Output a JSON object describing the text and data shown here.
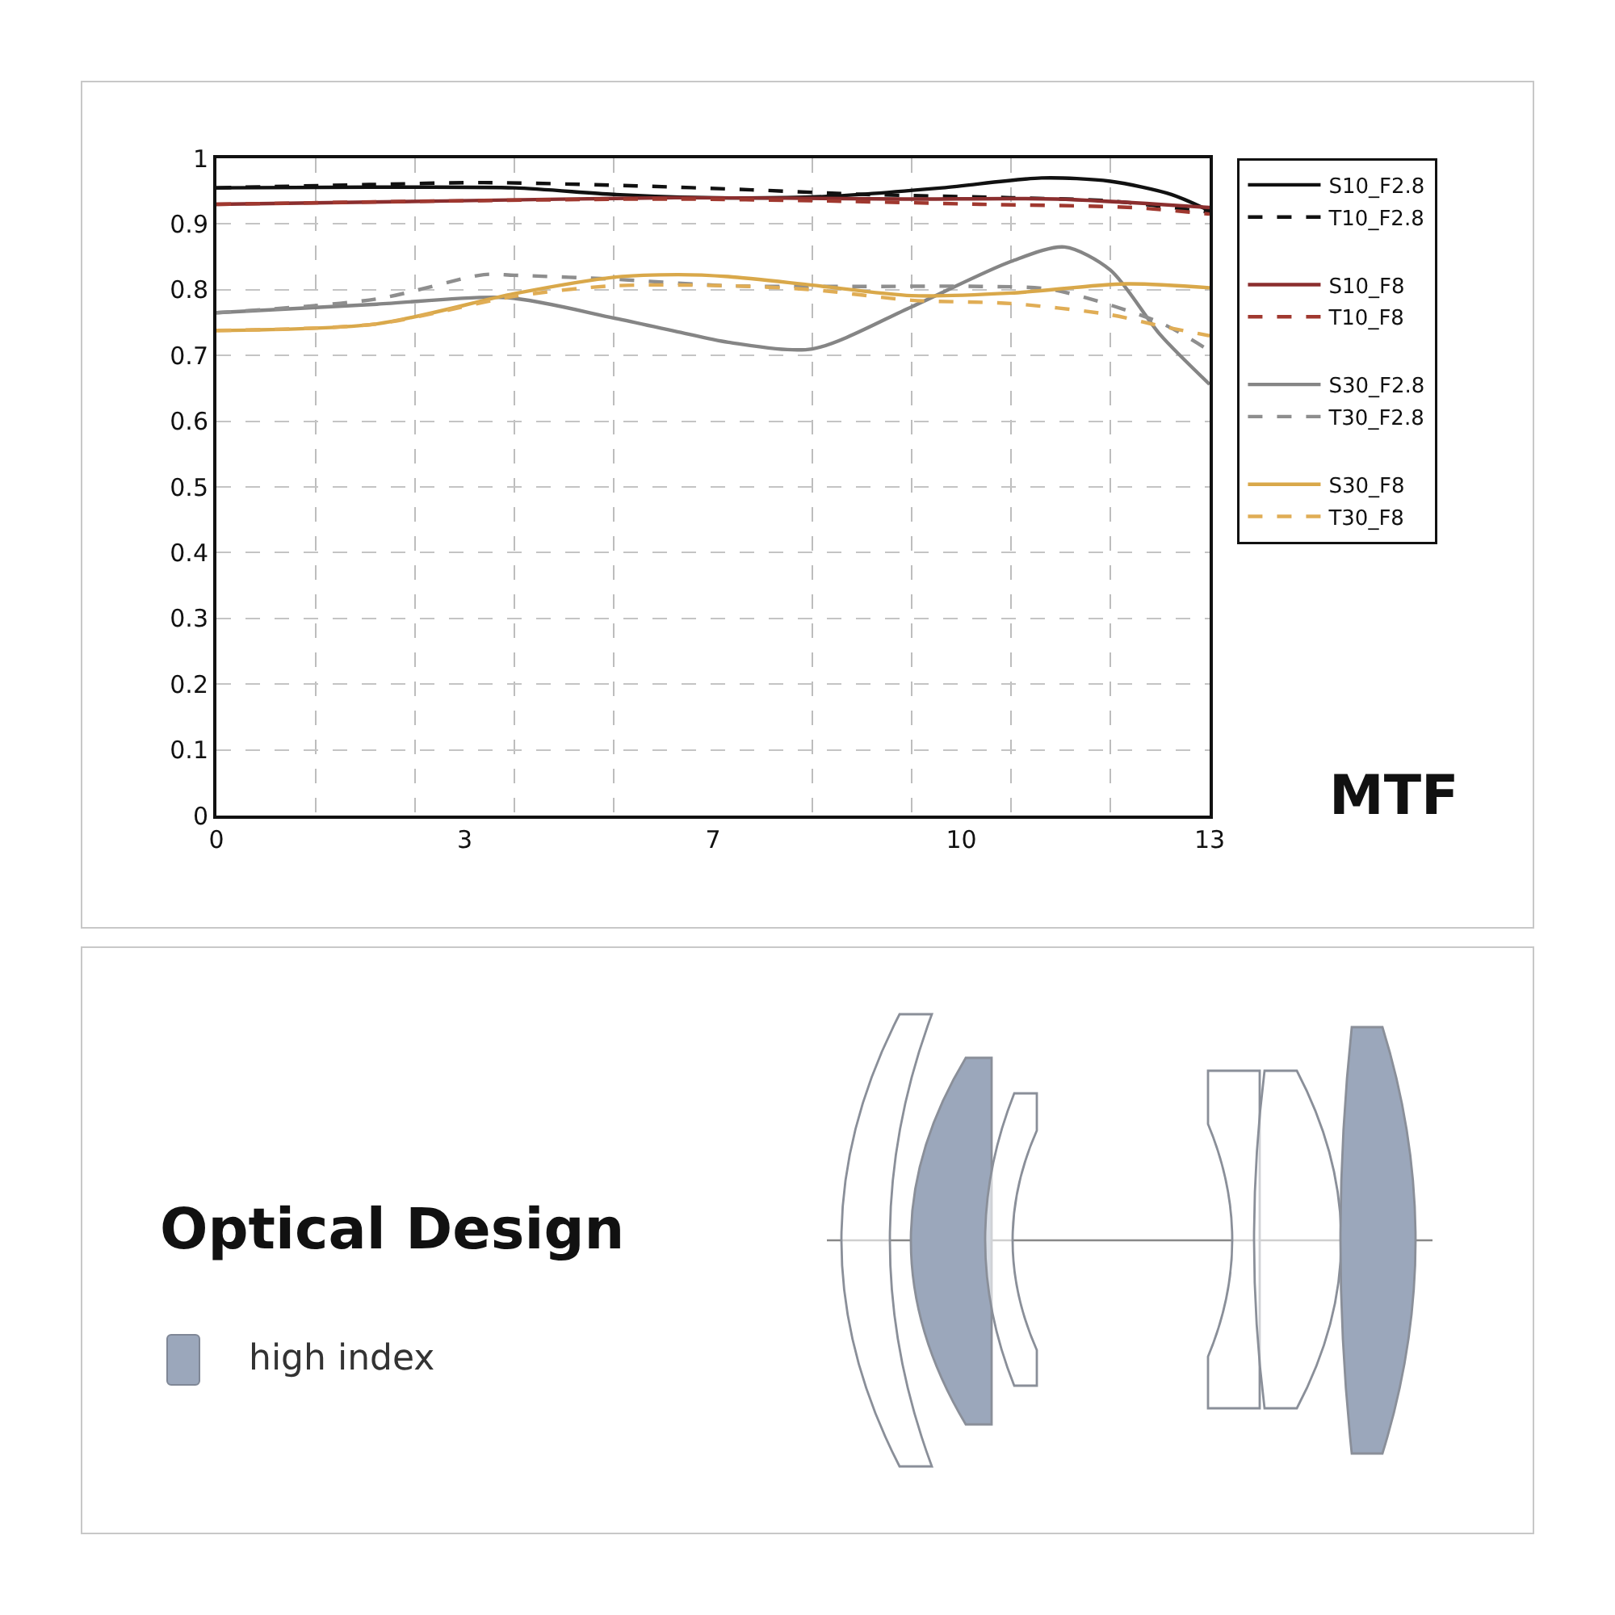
{
  "chart_data": [
    {
      "type": "line",
      "annotations": [
        "MTF"
      ],
      "xlim": [
        0,
        13
      ],
      "ylim": [
        0,
        1
      ],
      "xticks": [
        0,
        {
          "value": 1.3,
          "label": null
        },
        {
          "value": 2.6,
          "label": null
        },
        {
          "value": 3.25,
          "label": "3"
        },
        {
          "value": 3.9,
          "label": null
        },
        {
          "value": 5.2,
          "label": null
        },
        {
          "value": 6.5,
          "label": "7"
        },
        {
          "value": 7.8,
          "label": null
        },
        {
          "value": 9.1,
          "label": null
        },
        {
          "value": 9.75,
          "label": "10"
        },
        {
          "value": 10.4,
          "label": null
        },
        {
          "value": 11.7,
          "label": null
        },
        13
      ],
      "yticks": [
        0,
        0.1,
        0.2,
        0.3,
        0.4,
        0.5,
        0.6,
        0.7,
        0.8,
        0.9,
        1
      ],
      "grid": true,
      "legend": "right",
      "series": [
        {
          "name": "S10_F2.8",
          "color": "#111111",
          "line_style": "solid",
          "x": [
            0,
            2,
            3.9,
            5.2,
            6.5,
            8,
            9.5,
            10.8,
            11.7,
            12.5,
            13
          ],
          "values": [
            0.955,
            0.956,
            0.955,
            0.945,
            0.94,
            0.942,
            0.955,
            0.97,
            0.965,
            0.945,
            0.92
          ]
        },
        {
          "name": "T10_F2.8",
          "color": "#111111",
          "line_style": "dashed",
          "x": [
            0,
            2,
            3.5,
            5.5,
            7,
            8.5,
            10.4,
            11.7,
            13
          ],
          "values": [
            0.955,
            0.96,
            0.963,
            0.958,
            0.952,
            0.945,
            0.94,
            0.935,
            0.918
          ]
        },
        {
          "name": "S10_F8",
          "color": "#8b2e2e",
          "line_style": "solid",
          "x": [
            0,
            3,
            6,
            9,
            11,
            13
          ],
          "values": [
            0.93,
            0.935,
            0.94,
            0.938,
            0.938,
            0.925
          ]
        },
        {
          "name": "T10_F8",
          "color": "#a0382f",
          "line_style": "dashed",
          "x": [
            0,
            3,
            6,
            8,
            10,
            12,
            13
          ],
          "values": [
            0.93,
            0.935,
            0.938,
            0.935,
            0.93,
            0.925,
            0.915
          ]
        },
        {
          "name": "S30_F2.8",
          "color": "#858585",
          "line_style": "solid",
          "x": [
            0,
            2.1,
            3.8,
            5.2,
            6,
            6.7,
            7.8,
            9.1,
            10.4,
            11.1,
            11.7,
            12.35,
            13
          ],
          "values": [
            0.765,
            0.778,
            0.788,
            0.757,
            0.737,
            0.72,
            0.71,
            0.774,
            0.843,
            0.865,
            0.83,
            0.732,
            0.656
          ]
        },
        {
          "name": "T30_F2.8",
          "color": "#8e8e8e",
          "line_style": "dashed",
          "x": [
            0,
            2.1,
            3.5,
            3.9,
            5.2,
            6.7,
            8.5,
            10,
            10.95,
            12.35,
            13
          ],
          "values": [
            0.765,
            0.786,
            0.823,
            0.822,
            0.816,
            0.806,
            0.805,
            0.805,
            0.8,
            0.75,
            0.707
          ]
        },
        {
          "name": "S30_F8",
          "color": "#d9a84a",
          "line_style": "solid",
          "x": [
            0,
            2.1,
            3.9,
            5.2,
            6.04,
            6.7,
            7.8,
            9.1,
            10.4,
            11.9,
            13
          ],
          "values": [
            0.738,
            0.748,
            0.794,
            0.819,
            0.823,
            0.82,
            0.807,
            0.791,
            0.795,
            0.809,
            0.803
          ]
        },
        {
          "name": "T30_F8",
          "color": "#e0ad55",
          "line_style": "dashed",
          "x": [
            0,
            2.1,
            3.9,
            5.2,
            6.7,
            7.8,
            9.1,
            10.4,
            11.7,
            12.35,
            13
          ],
          "values": [
            0.738,
            0.748,
            0.79,
            0.806,
            0.806,
            0.8,
            0.784,
            0.779,
            0.762,
            0.745,
            0.73
          ]
        }
      ]
    },
    {
      "type": "other",
      "title": "Optical Design",
      "annotations": [
        "high index"
      ]
    }
  ]
}
